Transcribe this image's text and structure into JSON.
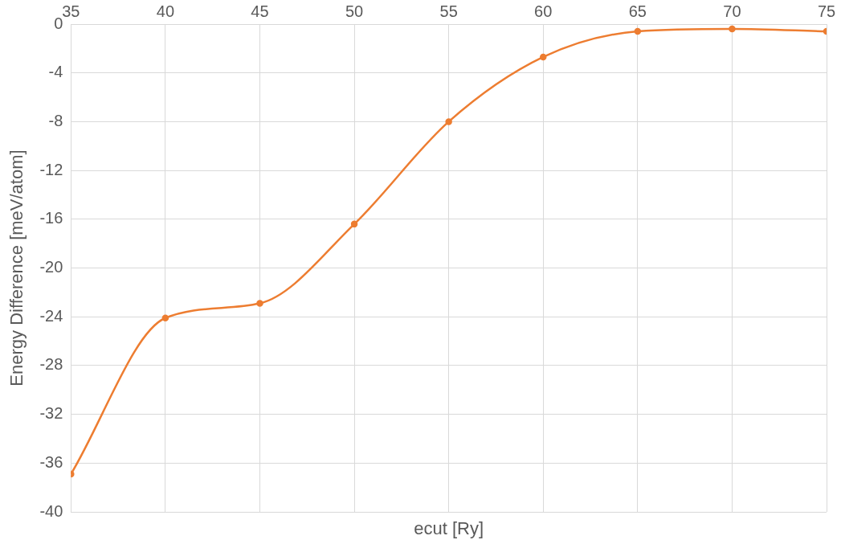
{
  "chart_data": {
    "type": "line",
    "xlabel": "ecut [Ry]",
    "ylabel": "Energy Difference [meV/atom]",
    "x": [
      35,
      40,
      45,
      50,
      55,
      60,
      65,
      70,
      75
    ],
    "series": [
      {
        "color": "#ed7d31",
        "values": [
          -36.9,
          -24.1,
          -22.9,
          -16.4,
          -8.0,
          -2.7,
          -0.6,
          -0.4,
          -0.6
        ]
      }
    ],
    "xlim": [
      35,
      75
    ],
    "xticks": [
      35,
      40,
      45,
      50,
      55,
      60,
      65,
      70,
      75
    ],
    "ylim": [
      -40,
      0
    ],
    "yticks": [
      0,
      -4,
      -8,
      -12,
      -16,
      -20,
      -24,
      -28,
      -32,
      -36,
      -40
    ],
    "grid": true,
    "legend": false,
    "marker": "circle",
    "line_style": "solid"
  }
}
